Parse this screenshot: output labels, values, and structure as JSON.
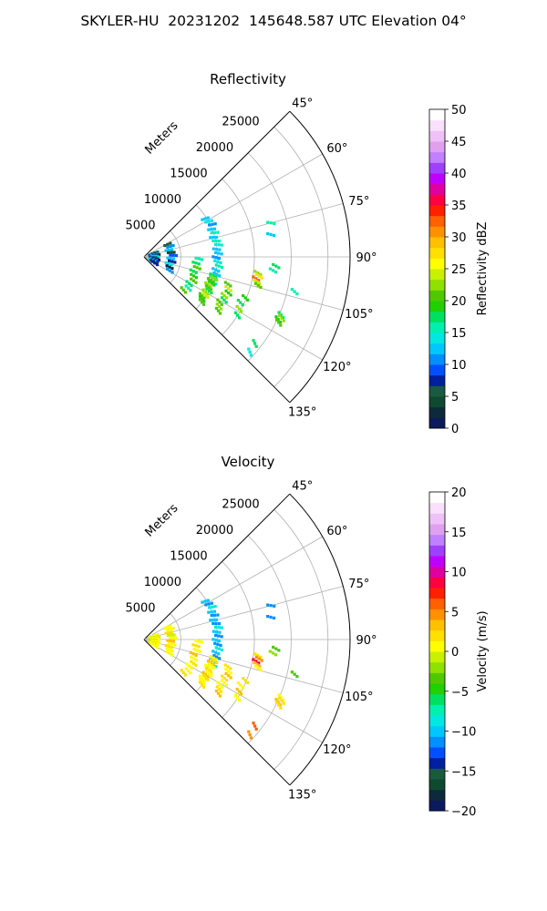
{
  "title": "SKYLER-HU  20231202  145648.587 UTC Elevation 04°",
  "chart_data": [
    {
      "type": "heatmap",
      "title": "Reflectivity",
      "projection": "polar-sector",
      "theta_range_deg": [
        45,
        135
      ],
      "theta_ticks": [
        "45°",
        "60°",
        "75°",
        "90°",
        "105°",
        "120°",
        "135°"
      ],
      "r_max": 28000,
      "r_ticks": [
        "5000",
        "10000",
        "15000",
        "20000",
        "25000"
      ],
      "r_axis_label": "Meters",
      "grid": true,
      "colorbar": {
        "label": "Reflectivity dBZ",
        "min": 0,
        "max": 50,
        "ticks": [
          "0",
          "5",
          "10",
          "15",
          "20",
          "25",
          "30",
          "35",
          "40",
          "45",
          "50"
        ],
        "colors": [
          "#0b1a5c",
          "#0d2a3a",
          "#0e4a30",
          "#1a5a40",
          "#0020a0",
          "#0050ff",
          "#0090ff",
          "#00c8ff",
          "#00e8e0",
          "#00f0b0",
          "#00e060",
          "#20d000",
          "#50c800",
          "#90e000",
          "#c8f000",
          "#ffff00",
          "#ffe000",
          "#ffc000",
          "#ff9000",
          "#ff6000",
          "#ff2000",
          "#ff0040",
          "#e000a0",
          "#c000ff",
          "#a040ff",
          "#c080ff",
          "#e0a0f0",
          "#f0c0f8",
          "#fae0fc",
          "#ffffff"
        ]
      },
      "series": [
        {
          "r": 9800,
          "theta": [
            58,
            110
          ],
          "values": [
            12,
            14,
            11,
            13,
            15,
            12,
            16,
            14,
            13,
            12,
            11,
            14,
            15,
            13,
            12,
            16,
            14
          ]
        },
        {
          "r": 1200,
          "theta": [
            70,
            120
          ],
          "values": [
            5,
            8,
            12,
            3,
            10,
            14,
            6,
            9,
            2,
            11,
            7,
            13,
            4,
            8
          ]
        },
        {
          "r": 3500,
          "theta": [
            62,
            118
          ],
          "values": [
            6,
            10,
            13,
            4,
            9,
            12,
            7,
            14,
            3,
            11
          ]
        },
        {
          "r": 7000,
          "theta": [
            92,
            130
          ],
          "values": [
            16,
            18,
            20,
            17,
            19,
            21,
            18,
            16,
            20
          ]
        },
        {
          "r": 9500,
          "theta": [
            105,
            128
          ],
          "values": [
            18,
            22,
            20,
            19,
            23,
            21,
            17,
            22,
            24,
            20,
            19,
            21
          ]
        },
        {
          "r": 12000,
          "theta": [
            108,
            126
          ],
          "values": [
            20,
            24,
            19,
            22,
            18,
            21,
            23,
            20
          ]
        },
        {
          "r": 14500,
          "theta": [
            112,
            122
          ],
          "values": [
            19,
            17,
            22,
            18
          ]
        },
        {
          "r": 15500,
          "theta": [
            98,
            104
          ],
          "values": [
            22,
            28,
            32,
            24,
            20
          ]
        },
        {
          "r": 17500,
          "theta": [
            94,
            96
          ],
          "values": [
            18,
            16
          ]
        },
        {
          "r": 20000,
          "theta": [
            113,
            116
          ],
          "values": [
            17,
            22,
            19,
            20
          ]
        },
        {
          "r": 21000,
          "theta": [
            103,
            106
          ],
          "values": [
            16
          ]
        },
        {
          "r": 17500,
          "theta": [
            75,
            80
          ],
          "values": [
            15,
            12
          ]
        },
        {
          "r": 19000,
          "theta": [
            128,
            132
          ],
          "values": [
            18,
            14
          ]
        }
      ]
    },
    {
      "type": "heatmap",
      "title": "Velocity",
      "projection": "polar-sector",
      "theta_range_deg": [
        45,
        135
      ],
      "theta_ticks": [
        "45°",
        "60°",
        "75°",
        "90°",
        "105°",
        "120°",
        "135°"
      ],
      "r_max": 28000,
      "r_ticks": [
        "5000",
        "10000",
        "15000",
        "20000",
        "25000"
      ],
      "r_axis_label": "Meters",
      "grid": true,
      "colorbar": {
        "label": "Velocity (m/s)",
        "min": -20,
        "max": 20,
        "ticks": [
          "−20",
          "−15",
          "−10",
          "−5",
          "0",
          "5",
          "10",
          "15",
          "20"
        ],
        "colors": [
          "#0b1a5c",
          "#0d2a3a",
          "#0e4a30",
          "#1a5a40",
          "#0020a0",
          "#0050ff",
          "#0090ff",
          "#00c8ff",
          "#00e8e0",
          "#00f0b0",
          "#00e060",
          "#20d000",
          "#50c800",
          "#90e000",
          "#c8f000",
          "#ffff00",
          "#ffe000",
          "#ffc000",
          "#ff9000",
          "#ff6000",
          "#ff2000",
          "#ff0040",
          "#e000a0",
          "#c000ff",
          "#a040ff",
          "#c080ff",
          "#e0a0f0",
          "#f0c0f8",
          "#fae0fc",
          "#ffffff"
        ]
      },
      "series": [
        {
          "r": 9800,
          "theta": [
            58,
            110
          ],
          "values": [
            -10,
            -11,
            -9,
            -10,
            -12,
            -10,
            -11,
            -9,
            -10,
            -11,
            -10,
            -12,
            -9,
            -10,
            -11,
            -10,
            -9
          ]
        },
        {
          "r": 1200,
          "theta": [
            70,
            120
          ],
          "values": [
            0,
            1,
            -1,
            2,
            0,
            1,
            -2,
            0,
            1,
            2,
            0,
            -1,
            1,
            0
          ]
        },
        {
          "r": 3500,
          "theta": [
            62,
            118
          ],
          "values": [
            1,
            0,
            2,
            -1,
            1,
            3,
            0,
            2,
            1,
            0
          ]
        },
        {
          "r": 7000,
          "theta": [
            92,
            130
          ],
          "values": [
            1,
            2,
            0,
            3,
            1,
            2,
            0,
            1,
            2
          ]
        },
        {
          "r": 9500,
          "theta": [
            105,
            128
          ],
          "values": [
            1,
            2,
            3,
            1,
            0,
            2,
            1,
            3,
            2,
            1,
            0,
            2
          ]
        },
        {
          "r": 12000,
          "theta": [
            108,
            126
          ],
          "values": [
            2,
            1,
            3,
            2,
            0,
            1,
            2,
            3
          ]
        },
        {
          "r": 14500,
          "theta": [
            112,
            122
          ],
          "values": [
            2,
            1,
            3,
            1
          ]
        },
        {
          "r": 15500,
          "theta": [
            98,
            104
          ],
          "values": [
            2,
            4,
            8,
            3,
            1
          ]
        },
        {
          "r": 17500,
          "theta": [
            94,
            96
          ],
          "values": [
            -3,
            -2
          ]
        },
        {
          "r": 20000,
          "theta": [
            113,
            116
          ],
          "values": [
            1,
            2,
            3,
            2
          ]
        },
        {
          "r": 21000,
          "theta": [
            103,
            106
          ],
          "values": [
            -4
          ]
        },
        {
          "r": 17500,
          "theta": [
            75,
            80
          ],
          "values": [
            -11,
            -12
          ]
        },
        {
          "r": 19000,
          "theta": [
            128,
            132
          ],
          "values": [
            6,
            4
          ]
        }
      ]
    }
  ]
}
